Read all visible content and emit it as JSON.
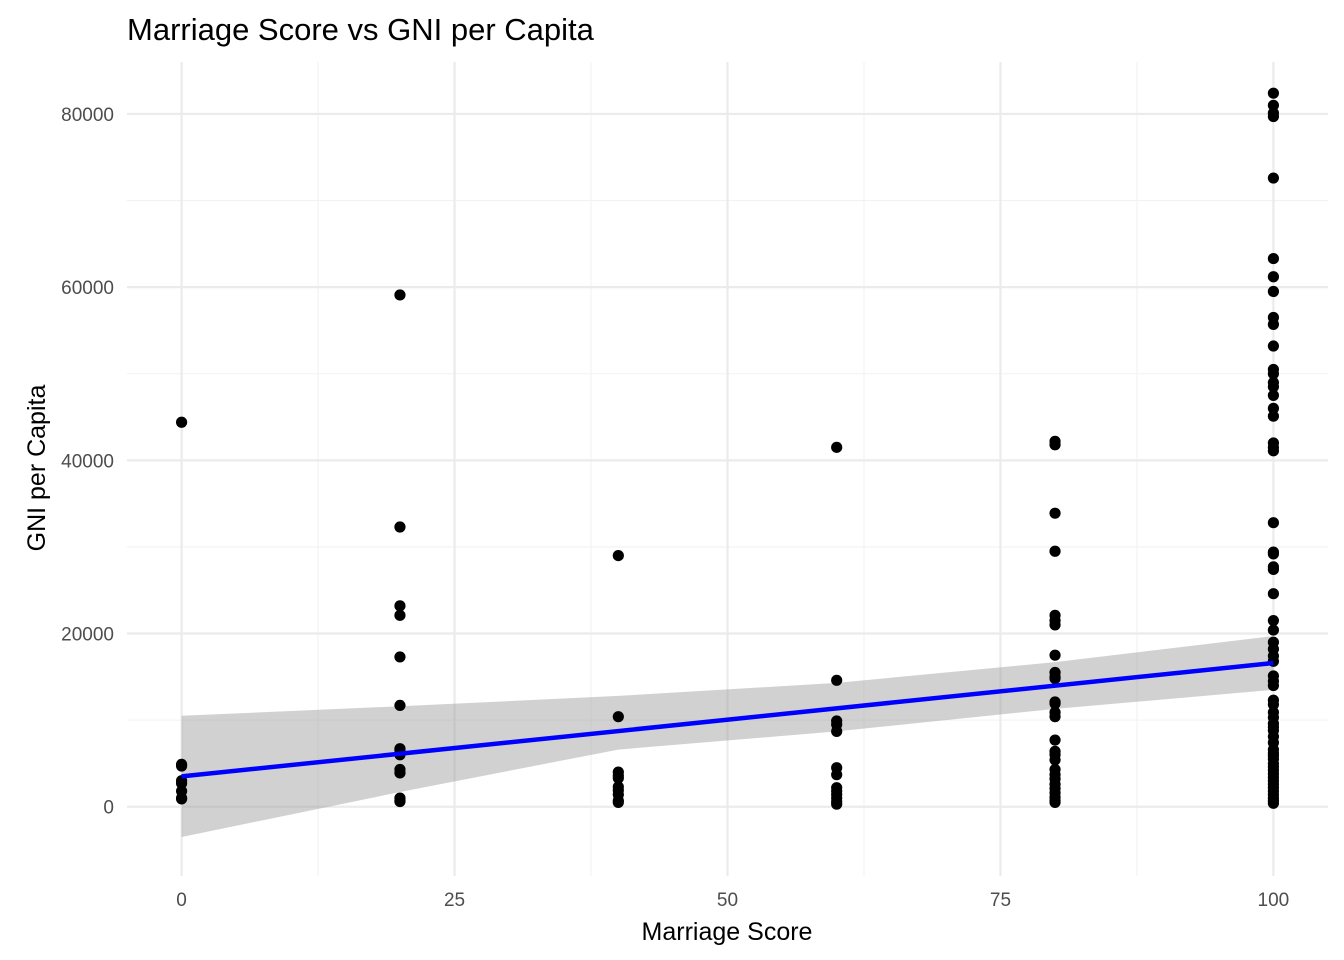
{
  "chart_data": {
    "type": "scatter",
    "title": "Marriage Score vs GNI per Capita",
    "xlabel": "Marriage Score",
    "ylabel": "GNI per Capita",
    "xlim": [
      -5,
      105
    ],
    "ylim": [
      -8000,
      86000
    ],
    "x_ticks": [
      0,
      25,
      50,
      75,
      100
    ],
    "y_ticks": [
      0,
      20000,
      40000,
      60000,
      80000
    ],
    "x_tick_labels": [
      "0",
      "25",
      "50",
      "75",
      "100"
    ],
    "y_tick_labels": [
      "0",
      "20000",
      "40000",
      "60000",
      "80000"
    ],
    "grid": true,
    "legend": "none",
    "colors": {
      "points": "#000000",
      "fit_line": "#0000ff",
      "confidence_band": "#999999"
    },
    "points": [
      {
        "x": 0,
        "y": 44400
      },
      {
        "x": 0,
        "y": 4900
      },
      {
        "x": 0,
        "y": 4700
      },
      {
        "x": 0,
        "y": 3000
      },
      {
        "x": 0,
        "y": 2700
      },
      {
        "x": 0,
        "y": 1800
      },
      {
        "x": 0,
        "y": 1000
      },
      {
        "x": 0,
        "y": 900
      },
      {
        "x": 20,
        "y": 59100
      },
      {
        "x": 20,
        "y": 32300
      },
      {
        "x": 20,
        "y": 23200
      },
      {
        "x": 20,
        "y": 22100
      },
      {
        "x": 20,
        "y": 17300
      },
      {
        "x": 20,
        "y": 11700
      },
      {
        "x": 20,
        "y": 6700
      },
      {
        "x": 20,
        "y": 6500
      },
      {
        "x": 20,
        "y": 6000
      },
      {
        "x": 20,
        "y": 4300
      },
      {
        "x": 20,
        "y": 3900
      },
      {
        "x": 20,
        "y": 1000
      },
      {
        "x": 20,
        "y": 700
      },
      {
        "x": 20,
        "y": 600
      },
      {
        "x": 40,
        "y": 29000
      },
      {
        "x": 40,
        "y": 10400
      },
      {
        "x": 40,
        "y": 4000
      },
      {
        "x": 40,
        "y": 3600
      },
      {
        "x": 40,
        "y": 3300
      },
      {
        "x": 40,
        "y": 2300
      },
      {
        "x": 40,
        "y": 1900
      },
      {
        "x": 40,
        "y": 1400
      },
      {
        "x": 40,
        "y": 700
      },
      {
        "x": 40,
        "y": 500
      },
      {
        "x": 60,
        "y": 41500
      },
      {
        "x": 60,
        "y": 14600
      },
      {
        "x": 60,
        "y": 9900
      },
      {
        "x": 60,
        "y": 9500
      },
      {
        "x": 60,
        "y": 8700
      },
      {
        "x": 60,
        "y": 4500
      },
      {
        "x": 60,
        "y": 3700
      },
      {
        "x": 60,
        "y": 2200
      },
      {
        "x": 60,
        "y": 1800
      },
      {
        "x": 60,
        "y": 1400
      },
      {
        "x": 60,
        "y": 1000
      },
      {
        "x": 60,
        "y": 600
      },
      {
        "x": 60,
        "y": 300
      },
      {
        "x": 80,
        "y": 42200
      },
      {
        "x": 80,
        "y": 41800
      },
      {
        "x": 80,
        "y": 33900
      },
      {
        "x": 80,
        "y": 29500
      },
      {
        "x": 80,
        "y": 22100
      },
      {
        "x": 80,
        "y": 21500
      },
      {
        "x": 80,
        "y": 21000
      },
      {
        "x": 80,
        "y": 17500
      },
      {
        "x": 80,
        "y": 15500
      },
      {
        "x": 80,
        "y": 15000
      },
      {
        "x": 80,
        "y": 14800
      },
      {
        "x": 80,
        "y": 12100
      },
      {
        "x": 80,
        "y": 11900
      },
      {
        "x": 80,
        "y": 10900
      },
      {
        "x": 80,
        "y": 10400
      },
      {
        "x": 80,
        "y": 7700
      },
      {
        "x": 80,
        "y": 6400
      },
      {
        "x": 80,
        "y": 6000
      },
      {
        "x": 80,
        "y": 5400
      },
      {
        "x": 80,
        "y": 4300
      },
      {
        "x": 80,
        "y": 3700
      },
      {
        "x": 80,
        "y": 3200
      },
      {
        "x": 80,
        "y": 2600
      },
      {
        "x": 80,
        "y": 2100
      },
      {
        "x": 80,
        "y": 1600
      },
      {
        "x": 80,
        "y": 1100
      },
      {
        "x": 80,
        "y": 700
      },
      {
        "x": 80,
        "y": 500
      },
      {
        "x": 100,
        "y": 82400
      },
      {
        "x": 100,
        "y": 81000
      },
      {
        "x": 100,
        "y": 80100
      },
      {
        "x": 100,
        "y": 79700
      },
      {
        "x": 100,
        "y": 72600
      },
      {
        "x": 100,
        "y": 63300
      },
      {
        "x": 100,
        "y": 61200
      },
      {
        "x": 100,
        "y": 59500
      },
      {
        "x": 100,
        "y": 56500
      },
      {
        "x": 100,
        "y": 55700
      },
      {
        "x": 100,
        "y": 53200
      },
      {
        "x": 100,
        "y": 50500
      },
      {
        "x": 100,
        "y": 50000
      },
      {
        "x": 100,
        "y": 49000
      },
      {
        "x": 100,
        "y": 48500
      },
      {
        "x": 100,
        "y": 47500
      },
      {
        "x": 100,
        "y": 46000
      },
      {
        "x": 100,
        "y": 45100
      },
      {
        "x": 100,
        "y": 42000
      },
      {
        "x": 100,
        "y": 41500
      },
      {
        "x": 100,
        "y": 41100
      },
      {
        "x": 100,
        "y": 32800
      },
      {
        "x": 100,
        "y": 29400
      },
      {
        "x": 100,
        "y": 29200
      },
      {
        "x": 100,
        "y": 27700
      },
      {
        "x": 100,
        "y": 27400
      },
      {
        "x": 100,
        "y": 24600
      },
      {
        "x": 100,
        "y": 21500
      },
      {
        "x": 100,
        "y": 20400
      },
      {
        "x": 100,
        "y": 19000
      },
      {
        "x": 100,
        "y": 18200
      },
      {
        "x": 100,
        "y": 17400
      },
      {
        "x": 100,
        "y": 16800
      },
      {
        "x": 100,
        "y": 15100
      },
      {
        "x": 100,
        "y": 14500
      },
      {
        "x": 100,
        "y": 14000
      },
      {
        "x": 100,
        "y": 12300
      },
      {
        "x": 100,
        "y": 11800
      },
      {
        "x": 100,
        "y": 10900
      },
      {
        "x": 100,
        "y": 10300
      },
      {
        "x": 100,
        "y": 9600
      },
      {
        "x": 100,
        "y": 9200
      },
      {
        "x": 100,
        "y": 8800
      },
      {
        "x": 100,
        "y": 8100
      },
      {
        "x": 100,
        "y": 7400
      },
      {
        "x": 100,
        "y": 6600
      },
      {
        "x": 100,
        "y": 6200
      },
      {
        "x": 100,
        "y": 5900
      },
      {
        "x": 100,
        "y": 5500
      },
      {
        "x": 100,
        "y": 5000
      },
      {
        "x": 100,
        "y": 4600
      },
      {
        "x": 100,
        "y": 4200
      },
      {
        "x": 100,
        "y": 3800
      },
      {
        "x": 100,
        "y": 3400
      },
      {
        "x": 100,
        "y": 3000
      },
      {
        "x": 100,
        "y": 2600
      },
      {
        "x": 100,
        "y": 2200
      },
      {
        "x": 100,
        "y": 1800
      },
      {
        "x": 100,
        "y": 1400
      },
      {
        "x": 100,
        "y": 1000
      },
      {
        "x": 100,
        "y": 700
      },
      {
        "x": 100,
        "y": 400
      }
    ],
    "fit_line": {
      "x": [
        0,
        100
      ],
      "y": [
        3500,
        16600
      ]
    },
    "confidence_band": {
      "x": [
        0,
        20,
        40,
        60,
        80,
        100
      ],
      "lower": [
        -3500,
        1700,
        6600,
        8700,
        11300,
        13500
      ],
      "upper": [
        10500,
        11600,
        12800,
        14300,
        16700,
        19700
      ]
    }
  }
}
